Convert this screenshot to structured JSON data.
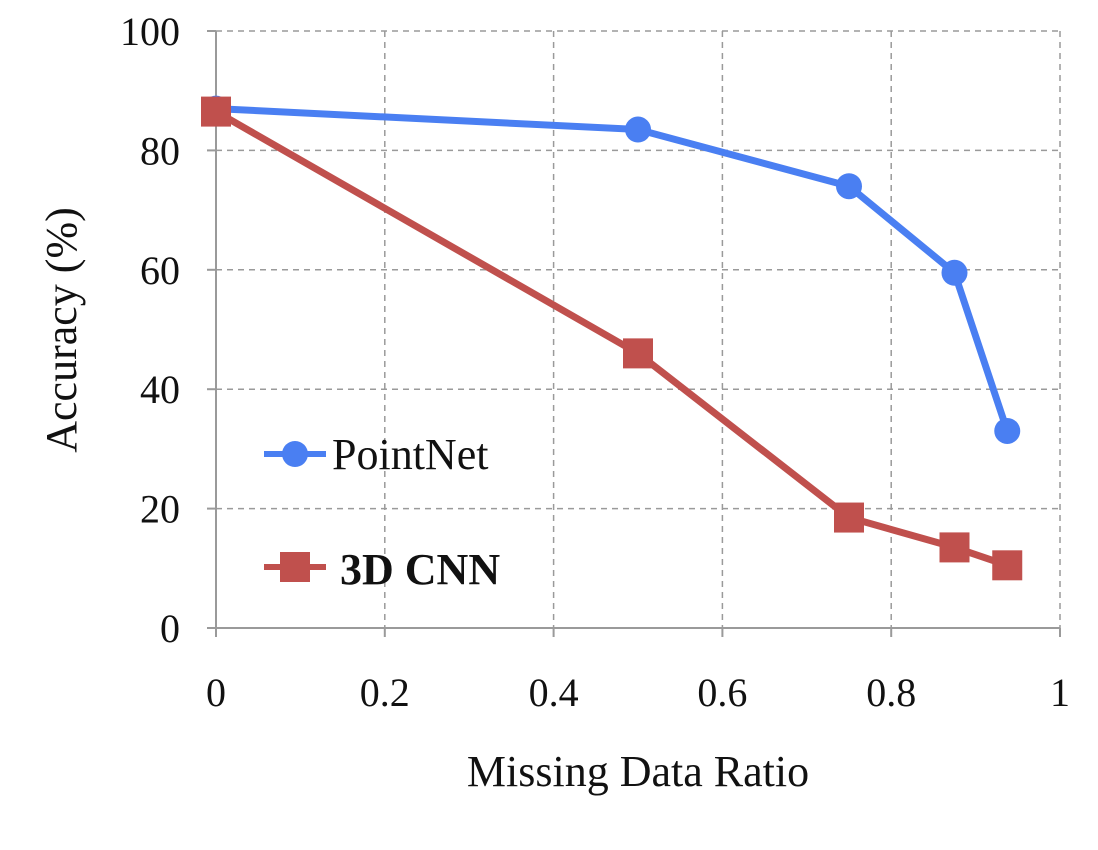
{
  "chart_data": {
    "type": "line",
    "xlabel": "Missing Data Ratio",
    "ylabel": "Accuracy (%)",
    "xlim": [
      0,
      1
    ],
    "ylim": [
      0,
      100
    ],
    "xticks": [
      0,
      0.2,
      0.4,
      0.6,
      0.8,
      1
    ],
    "xtick_labels": [
      "0",
      "0.2",
      "0.4",
      "0.6",
      "0.8",
      "1"
    ],
    "yticks": [
      0,
      20,
      40,
      60,
      80,
      100
    ],
    "ytick_labels": [
      "0",
      "20",
      "40",
      "60",
      "80",
      "100"
    ],
    "grid": true,
    "legend_position": "lower-left",
    "series": [
      {
        "name": "PointNet",
        "color": "#4a7ff2",
        "marker": "circle",
        "x": [
          0,
          0.5,
          0.75,
          0.875,
          0.9375
        ],
        "y": [
          87,
          83.5,
          74,
          59.5,
          33
        ]
      },
      {
        "name": "3D CNN",
        "color": "#c0504d",
        "marker": "square",
        "label_bold": true,
        "x": [
          0,
          0.5,
          0.75,
          0.875,
          0.9375
        ],
        "y": [
          86.5,
          46,
          18.5,
          13.5,
          10.5
        ]
      }
    ]
  }
}
